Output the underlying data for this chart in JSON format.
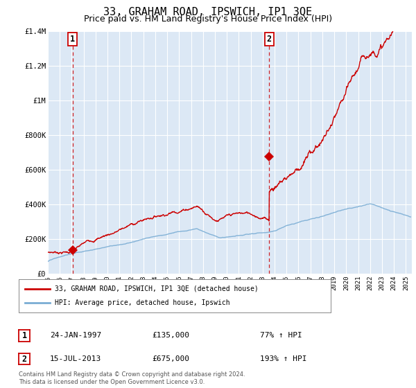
{
  "title": "33, GRAHAM ROAD, IPSWICH, IP1 3QE",
  "subtitle": "Price paid vs. HM Land Registry's House Price Index (HPI)",
  "title_fontsize": 11,
  "subtitle_fontsize": 9,
  "plot_bg_color": "#dce8f5",
  "ylim": [
    0,
    1400000
  ],
  "xlim_start": 1995.0,
  "xlim_end": 2025.5,
  "yticks": [
    0,
    200000,
    400000,
    600000,
    800000,
    1000000,
    1200000,
    1400000
  ],
  "ytick_labels": [
    "£0",
    "£200K",
    "£400K",
    "£600K",
    "£800K",
    "£1M",
    "£1.2M",
    "£1.4M"
  ],
  "sale1_x": 1997.07,
  "sale1_y": 135000,
  "sale2_x": 2013.54,
  "sale2_y": 675000,
  "legend_label1": "33, GRAHAM ROAD, IPSWICH, IP1 3QE (detached house)",
  "legend_label2": "HPI: Average price, detached house, Ipswich",
  "info1_num": "1",
  "info1_date": "24-JAN-1997",
  "info1_price": "£135,000",
  "info1_hpi": "77% ↑ HPI",
  "info2_num": "2",
  "info2_date": "15-JUL-2013",
  "info2_price": "£675,000",
  "info2_hpi": "193% ↑ HPI",
  "footer": "Contains HM Land Registry data © Crown copyright and database right 2024.\nThis data is licensed under the Open Government Licence v3.0.",
  "red_color": "#cc0000",
  "blue_color": "#7aadd4",
  "grid_color": "#ffffff"
}
